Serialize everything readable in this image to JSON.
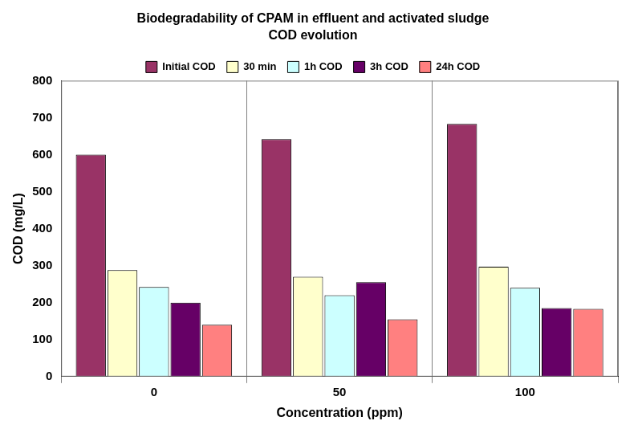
{
  "chart_data": {
    "type": "bar",
    "title": "Biodegradability of CPAM in effluent and activated sludge",
    "subtitle": "COD evolution",
    "x_label": "Concentration (ppm)",
    "y_label": "COD (mg/L)",
    "categories": [
      "0",
      "50",
      "100"
    ],
    "series": [
      {
        "name": "Initial COD",
        "color": "#993366",
        "values": [
          600,
          642,
          683
        ]
      },
      {
        "name": "30 min",
        "color": "#ffffcc",
        "values": [
          288,
          270,
          297
        ]
      },
      {
        "name": "1h COD",
        "color": "#ccffff",
        "values": [
          242,
          220,
          240
        ]
      },
      {
        "name": "3h COD",
        "color": "#660066",
        "values": [
          200,
          255,
          185
        ]
      },
      {
        "name": "24h COD",
        "color": "#ff8080",
        "values": [
          140,
          155,
          183
        ]
      }
    ],
    "ylim": [
      0,
      800
    ],
    "yticks": [
      0,
      100,
      200,
      300,
      400,
      500,
      600,
      700,
      800
    ],
    "grid": true,
    "legend": "top"
  }
}
